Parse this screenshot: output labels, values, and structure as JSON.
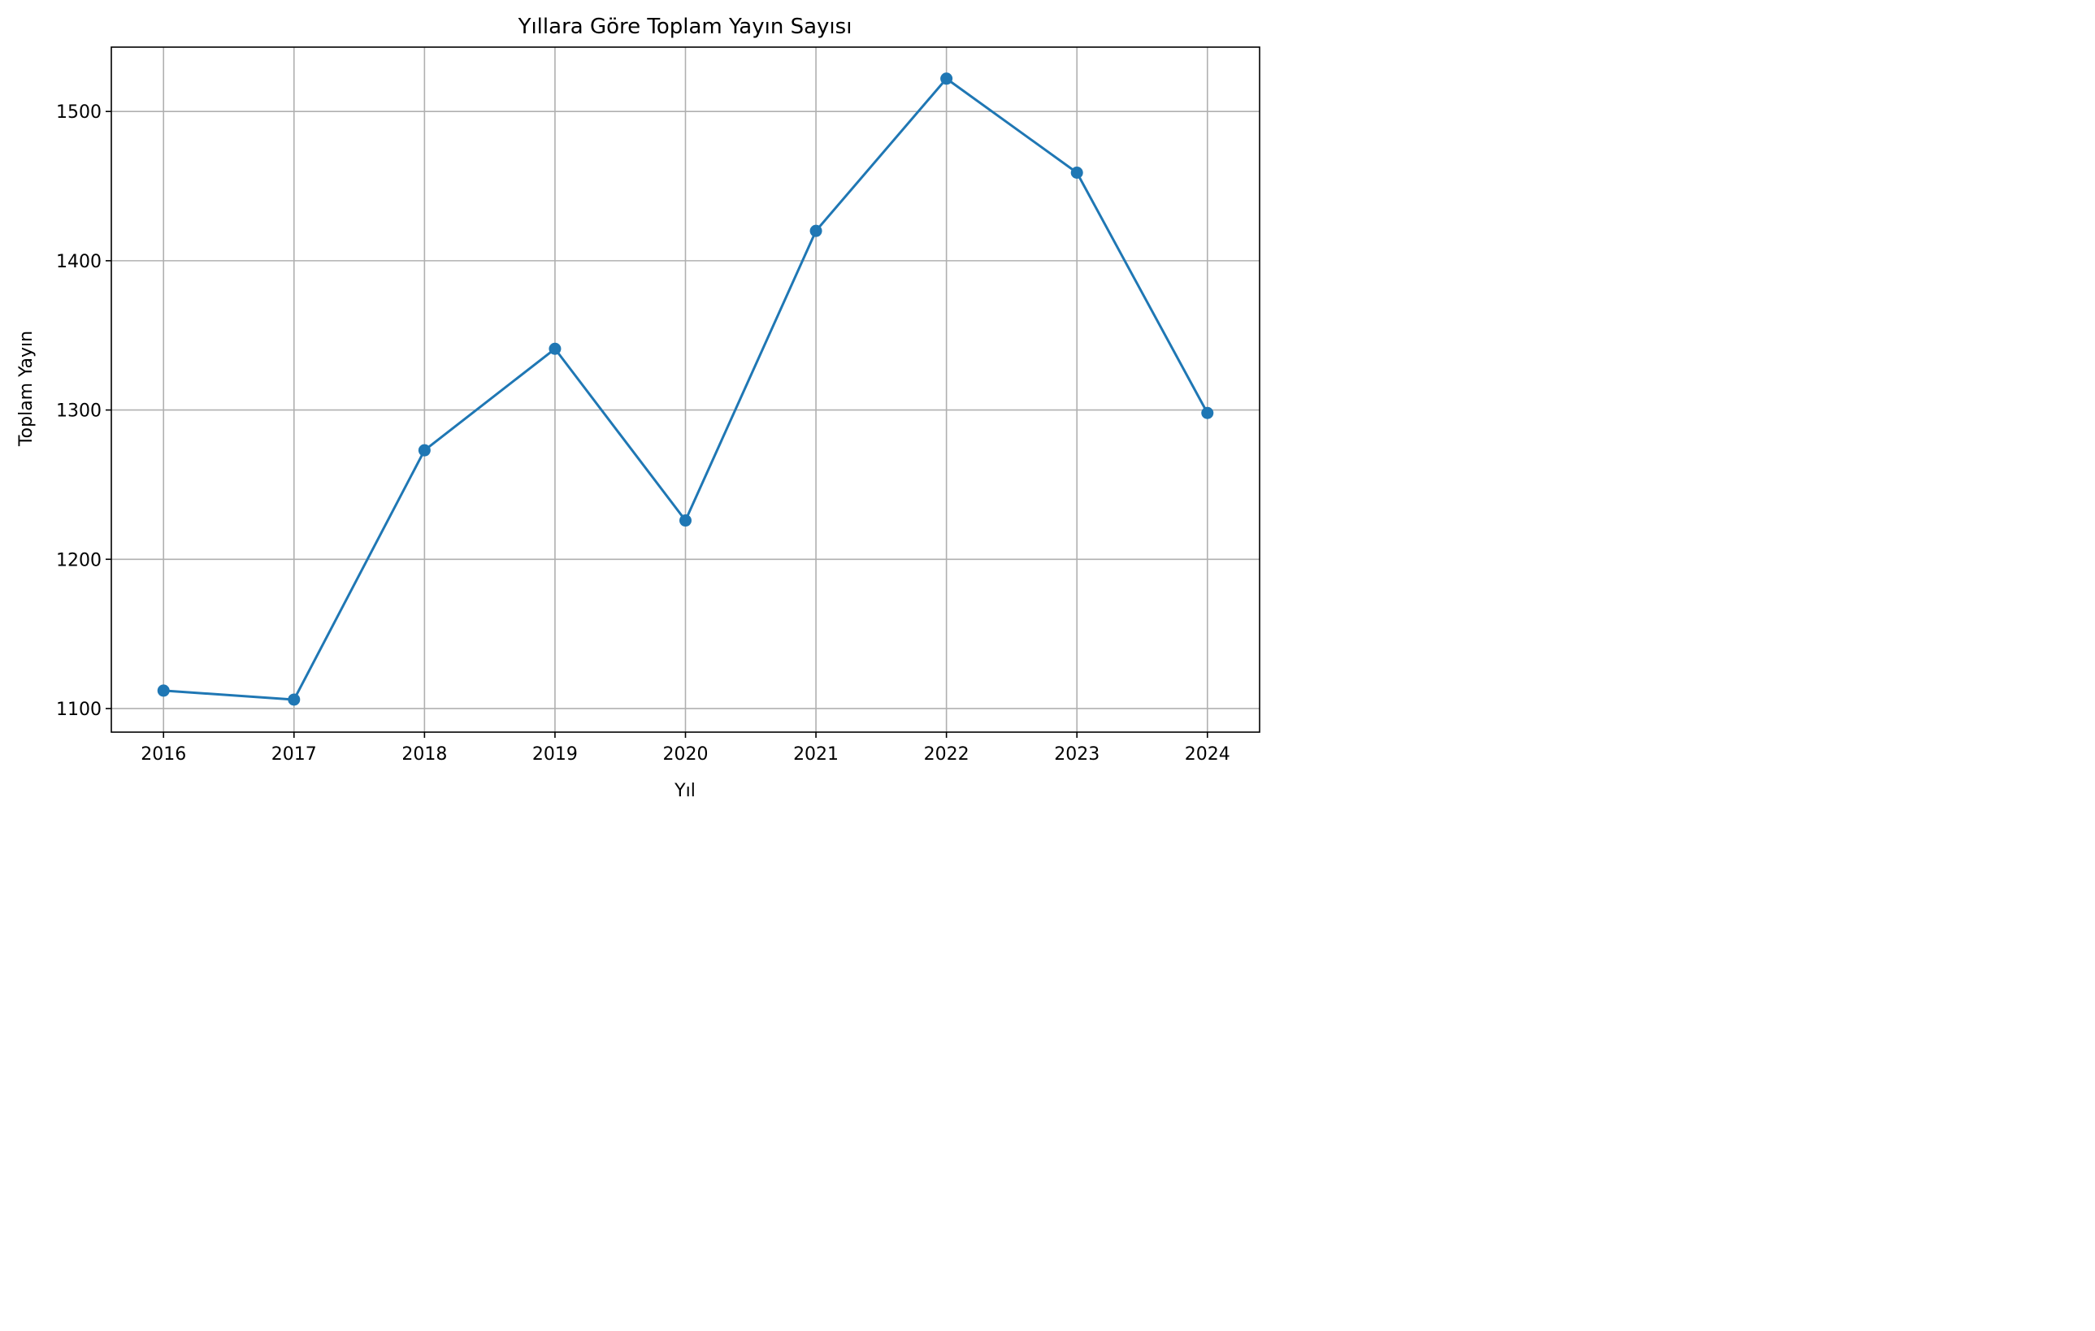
{
  "chart_data": {
    "type": "line",
    "title": "Yıllara Göre Toplam Yayın Sayısı",
    "xlabel": "Yıl",
    "ylabel": "Toplam Yayın",
    "x": [
      2016,
      2017,
      2018,
      2019,
      2020,
      2021,
      2022,
      2023,
      2024
    ],
    "series": [
      {
        "values": [
          1112,
          1106,
          1273,
          1341,
          1226,
          1420,
          1522,
          1459,
          1298
        ],
        "color": "#1f77b4",
        "marker": "circle"
      }
    ],
    "xlim": [
      2015.6,
      2024.4
    ],
    "ylim": [
      1084.2,
      1543.1
    ],
    "xticks": [
      "2016",
      "2017",
      "2018",
      "2019",
      "2020",
      "2021",
      "2022",
      "2023",
      "2024"
    ],
    "yticks": [
      "1100",
      "1200",
      "1300",
      "1400",
      "1500"
    ],
    "grid": true,
    "grid_color": "#b0b0b0",
    "legend": false
  }
}
